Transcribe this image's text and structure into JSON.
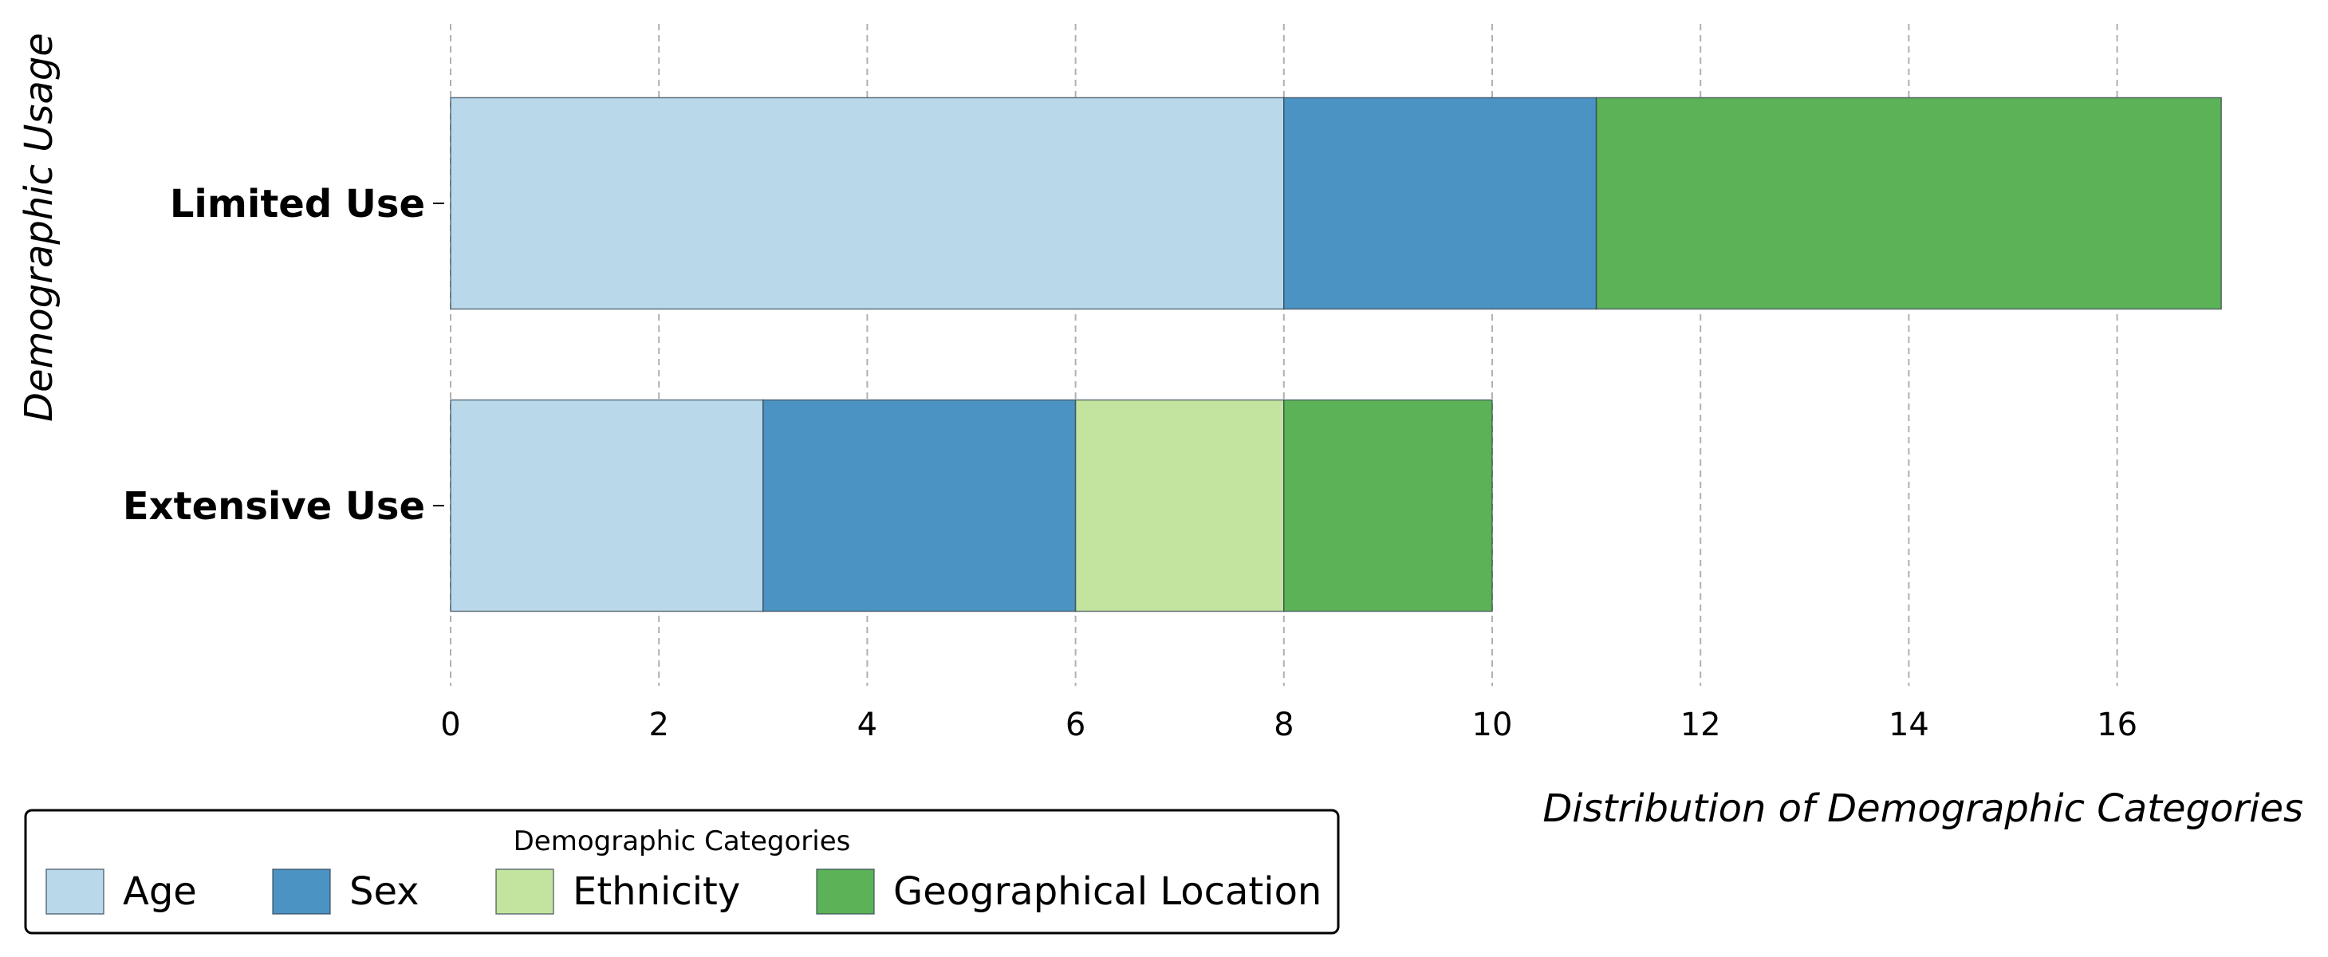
{
  "chart_data": {
    "type": "bar",
    "orientation": "horizontal",
    "stacked": true,
    "categories": [
      "Limited Use",
      "Extensive Use"
    ],
    "series": [
      {
        "name": "Age",
        "values": [
          8,
          3
        ],
        "color": "#b9d8e9"
      },
      {
        "name": "Sex",
        "values": [
          3,
          3
        ],
        "color": "#4b93c3"
      },
      {
        "name": "Ethnicity",
        "values": [
          0,
          2
        ],
        "color": "#c2e49f"
      },
      {
        "name": "Geographical Location",
        "values": [
          6,
          2
        ],
        "color": "#5cb257"
      }
    ],
    "xlabel": "Distribution of Demographic Categories",
    "ylabel": "Demographic Usage",
    "xlim": [
      0,
      17
    ],
    "xticks": [
      0,
      2,
      4,
      6,
      8,
      10,
      12,
      14,
      16
    ],
    "grid": "x-dashed",
    "legend": {
      "title": "Demographic Categories",
      "placement": "bottom-left"
    }
  }
}
